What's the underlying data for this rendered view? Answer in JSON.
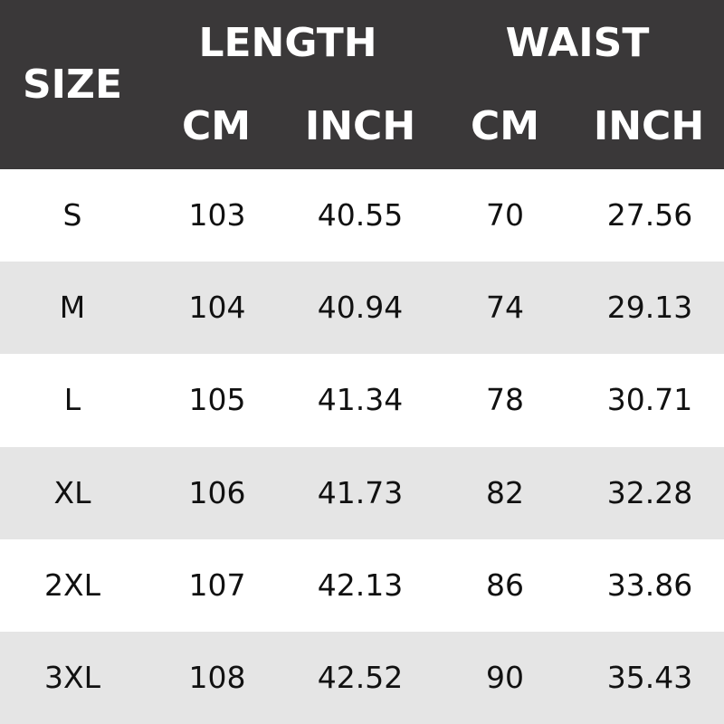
{
  "header": {
    "size": "SIZE",
    "length": "LENGTH",
    "waist": "WAIST",
    "length_cm": "CM",
    "length_inch": "INCH",
    "waist_cm": "CM",
    "waist_inch": "INCH"
  },
  "colors": {
    "header_bg": "#3a3839",
    "alt_row": "#e5e5e5"
  },
  "rows": [
    {
      "size": "S",
      "length_cm": "103",
      "length_inch": "40.55",
      "waist_cm": "70",
      "waist_inch": "27.56"
    },
    {
      "size": "M",
      "length_cm": "104",
      "length_inch": "40.94",
      "waist_cm": "74",
      "waist_inch": "29.13"
    },
    {
      "size": "L",
      "length_cm": "105",
      "length_inch": "41.34",
      "waist_cm": "78",
      "waist_inch": "30.71"
    },
    {
      "size": "XL",
      "length_cm": "106",
      "length_inch": "41.73",
      "waist_cm": "82",
      "waist_inch": "32.28"
    },
    {
      "size": "2XL",
      "length_cm": "107",
      "length_inch": "42.13",
      "waist_cm": "86",
      "waist_inch": "33.86"
    },
    {
      "size": "3XL",
      "length_cm": "108",
      "length_inch": "42.52",
      "waist_cm": "90",
      "waist_inch": "35.43"
    }
  ]
}
